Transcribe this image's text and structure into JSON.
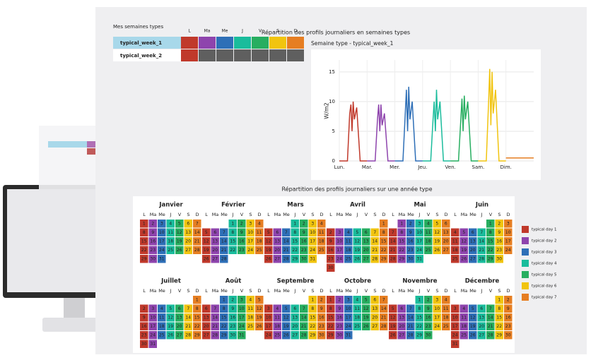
{
  "header": {
    "table_title": "Mes semaines types",
    "title": "Répartition des profils journaliers en semaines types"
  },
  "table": {
    "columns": [
      "L",
      "Ma",
      "Me",
      "J",
      "V",
      "S",
      "D"
    ],
    "rows": [
      {
        "name": "typical_week_1",
        "colors": [
          "#c0392b",
          "#8e44ad",
          "#2e6fb7",
          "#1abc9c",
          "#27ae60",
          "#f1c40f",
          "#e67e22"
        ]
      },
      {
        "name": "typical_week_2",
        "colors": [
          "#c0392b",
          "#5f5f5f",
          "#5f5f5f",
          "#5f5f5f",
          "#5f5f5f",
          "#5f5f5f",
          "#5f5f5f"
        ]
      }
    ]
  },
  "chart_data": {
    "type": "line",
    "title": "Semaine type - typical_week_1",
    "y_label": "W/m2",
    "categories": [
      "Lun.",
      "Mar.",
      "Mer.",
      "Jeu.",
      "Ven.",
      "Sam.",
      "Dim."
    ],
    "xlim": [
      0,
      168
    ],
    "ylim": [
      0,
      17
    ],
    "yticks": [
      0,
      5,
      10,
      15
    ],
    "grid": true,
    "series": [
      {
        "color": "#c0392b",
        "x": [
          0,
          7,
          9,
          10,
          11,
          12,
          13,
          15,
          18,
          24
        ],
        "values": [
          0,
          0,
          8,
          9.5,
          5,
          10,
          7,
          9,
          0,
          0
        ]
      },
      {
        "color": "#8e44ad",
        "x": [
          24,
          31,
          33,
          34,
          35,
          36,
          37,
          39,
          42,
          48
        ],
        "values": [
          0,
          0,
          7,
          9.5,
          5,
          9.5,
          6,
          8,
          0,
          0
        ]
      },
      {
        "color": "#2e6fb7",
        "x": [
          48,
          55,
          57,
          58,
          59,
          60,
          61,
          63,
          66,
          72
        ],
        "values": [
          0,
          0,
          8,
          12,
          5,
          12.5,
          7,
          10,
          0,
          0
        ]
      },
      {
        "color": "#1abc9c",
        "x": [
          72,
          79,
          81,
          82,
          83,
          84,
          85,
          87,
          90,
          96
        ],
        "values": [
          0,
          0,
          7,
          10,
          5,
          12,
          7,
          10,
          0,
          0
        ]
      },
      {
        "color": "#27ae60",
        "x": [
          96,
          103,
          105,
          106,
          107,
          108,
          109,
          111,
          114,
          120
        ],
        "values": [
          0,
          0,
          7,
          10.5,
          5,
          11,
          7,
          10,
          0,
          0
        ]
      },
      {
        "color": "#f1c40f",
        "x": [
          120,
          127,
          129,
          130,
          131,
          132,
          133,
          135,
          138,
          144
        ],
        "values": [
          0,
          0,
          10,
          15.5,
          6,
          15,
          8,
          12,
          0,
          0
        ]
      },
      {
        "color": "#e67e22",
        "x": [
          144,
          147,
          150,
          153,
          156,
          159,
          162,
          164,
          166,
          168
        ],
        "values": [
          0.5,
          0.5,
          0.5,
          0.5,
          0.5,
          0.5,
          0.5,
          0.5,
          0.5,
          0.5
        ]
      }
    ]
  },
  "calendar": {
    "title": "Répartition des profils journaliers sur une année type",
    "months": [
      "Janvier",
      "Février",
      "Mars",
      "Avril",
      "Mai",
      "Juin",
      "Juillet",
      "Août",
      "Septembre",
      "Octobre",
      "Novembre",
      "Décembre"
    ],
    "weekdays": [
      "L",
      "Ma",
      "Me",
      "J",
      "V",
      "S",
      "D"
    ],
    "day_numbers": [
      1,
      2,
      3,
      4,
      5,
      6,
      7,
      8,
      9,
      10,
      11,
      12,
      13,
      14,
      15,
      16,
      17,
      18,
      19,
      20,
      21,
      22,
      23,
      24,
      25,
      26,
      27,
      28,
      29,
      30,
      31
    ],
    "legend": [
      {
        "label": "typical day 1",
        "color": "#c0392b"
      },
      {
        "label": "typical day 2",
        "color": "#8e44ad"
      },
      {
        "label": "typical day 3",
        "color": "#2e6fb7"
      },
      {
        "label": "typical day 4",
        "color": "#1abc9c"
      },
      {
        "label": "typical day 5",
        "color": "#27ae60"
      },
      {
        "label": "typical day 6",
        "color": "#f1c40f"
      },
      {
        "label": "typical day 7",
        "color": "#e67e22"
      }
    ]
  }
}
